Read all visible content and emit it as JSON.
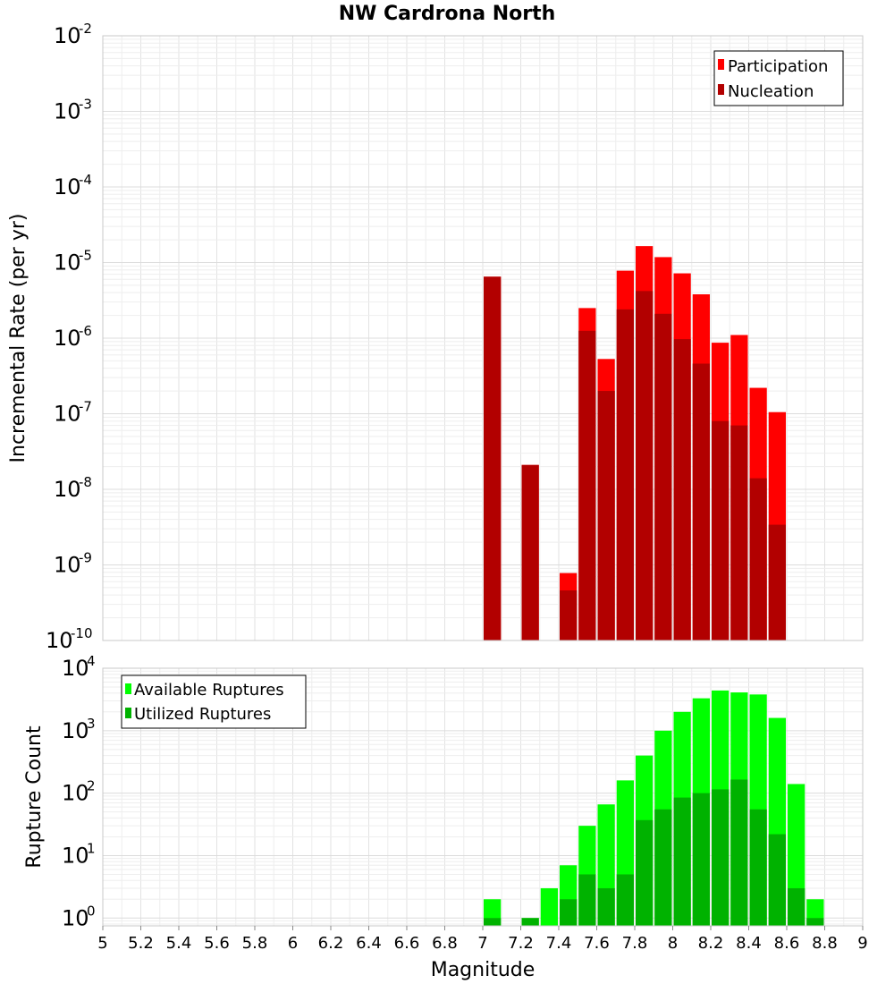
{
  "chart_data": [
    {
      "type": "bar",
      "title": "NW Cardrona North",
      "xlabel": "Magnitude",
      "ylabel": "Incremental Rate (per yr)",
      "yscale": "log",
      "xlim": [
        5,
        9
      ],
      "ylim": [
        1e-10,
        0.01
      ],
      "bar_width": 0.1,
      "grid": true,
      "legend_position": "top-right",
      "series": [
        {
          "name": "Participation",
          "color": "#ff0000",
          "x": [
            7.05,
            7.25,
            7.45,
            7.55,
            7.65,
            7.75,
            7.85,
            7.95,
            8.05,
            8.15,
            8.25,
            8.35,
            8.45,
            8.55
          ],
          "values": [
            6.5e-06,
            2.1e-08,
            7.8e-10,
            2.5e-06,
            5.3e-07,
            7.8e-06,
            1.65e-05,
            1.18e-05,
            7.2e-06,
            3.8e-06,
            8.7e-07,
            1.1e-06,
            2.2e-07,
            1.05e-07
          ]
        },
        {
          "name": "Nucleation",
          "color": "#b20000",
          "x": [
            7.05,
            7.25,
            7.45,
            7.55,
            7.65,
            7.75,
            7.85,
            7.95,
            8.05,
            8.15,
            8.25,
            8.35,
            8.45,
            8.55
          ],
          "values": [
            6.5e-06,
            2.1e-08,
            4.6e-10,
            1.25e-06,
            2e-07,
            2.4e-06,
            4.2e-06,
            2.1e-06,
            9.7e-07,
            4.6e-07,
            8e-08,
            7e-08,
            1.4e-08,
            3.4e-09
          ]
        }
      ]
    },
    {
      "type": "bar",
      "xlabel": "Magnitude",
      "ylabel": "Rupture Count",
      "yscale": "log",
      "xlim": [
        5,
        9
      ],
      "ylim": [
        0.75,
        10000
      ],
      "bar_width": 0.1,
      "grid": true,
      "legend_position": "top-left",
      "xticks": [
        "5",
        "5.2",
        "5.4",
        "5.6",
        "5.8",
        "6",
        "6.2",
        "6.4",
        "6.6",
        "6.8",
        "7",
        "7.2",
        "7.4",
        "7.6",
        "7.8",
        "8",
        "8.2",
        "8.4",
        "8.6",
        "8.8",
        "9"
      ],
      "series": [
        {
          "name": "Available Ruptures",
          "color": "#00ff00",
          "x": [
            7.05,
            7.25,
            7.35,
            7.45,
            7.55,
            7.65,
            7.75,
            7.85,
            7.95,
            8.05,
            8.15,
            8.25,
            8.35,
            8.45,
            8.55,
            8.65,
            8.75
          ],
          "values": [
            2,
            1,
            3,
            7,
            30,
            66,
            160,
            400,
            1000,
            2000,
            3300,
            4400,
            4100,
            3800,
            1600,
            140,
            2
          ]
        },
        {
          "name": "Utilized Ruptures",
          "color": "#00b200",
          "x": [
            7.05,
            7.25,
            7.45,
            7.55,
            7.65,
            7.75,
            7.85,
            7.95,
            8.05,
            8.15,
            8.25,
            8.35,
            8.45,
            8.55,
            8.65,
            8.75
          ],
          "values": [
            1,
            1,
            2,
            5,
            3,
            5,
            37,
            55,
            85,
            100,
            115,
            165,
            55,
            22,
            3,
            1
          ]
        }
      ]
    }
  ]
}
